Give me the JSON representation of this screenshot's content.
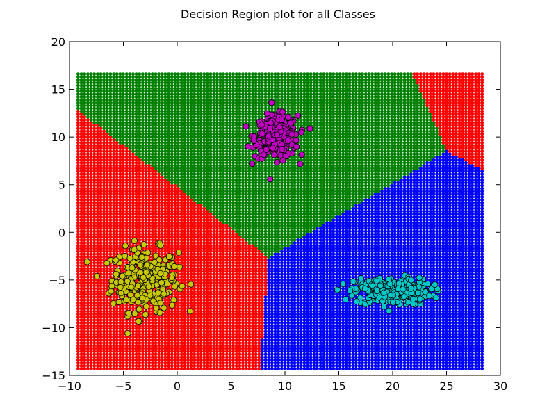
{
  "chart_data": {
    "type": "scatter",
    "title": "Decision Region plot for all Classes",
    "xlabel": "",
    "ylabel": "",
    "xlim": [
      -10,
      30
    ],
    "ylim": [
      -15,
      20
    ],
    "x_ticks": [
      "−10",
      "−5",
      "0",
      "5",
      "10",
      "15",
      "20",
      "25",
      "30"
    ],
    "y_ticks": [
      "20",
      "15",
      "10",
      "5",
      "0",
      "−5",
      "−10",
      "−15"
    ],
    "x_tick_values": [
      -10,
      -5,
      0,
      5,
      10,
      15,
      20,
      25,
      30
    ],
    "y_tick_values": [
      20,
      15,
      10,
      5,
      0,
      -5,
      -10,
      -15
    ],
    "grid": false,
    "legend": "none",
    "decision_regions": {
      "x_range": [
        -9.2,
        28.3
      ],
      "y_range": [
        -14.3,
        16.7
      ],
      "step": 0.3,
      "classes": [
        {
          "color": "#ff0000",
          "center": [
            -3.5,
            -5.0
          ]
        },
        {
          "color": "#008000",
          "center": [
            9.2,
            9.5
          ]
        },
        {
          "color": "#0000ff",
          "center": [
            20.0,
            -6.5
          ]
        },
        {
          "color": "#ff0000",
          "center": [
            36.0,
            20.0
          ]
        }
      ]
    },
    "series": [
      {
        "color": "#c8c800",
        "center": [
          -3.0,
          -5.0
        ],
        "spread": [
          2.8,
          3.0
        ],
        "count": 300
      },
      {
        "color": "#c000c0",
        "center": [
          9.2,
          10.0
        ],
        "spread": [
          1.8,
          2.0
        ],
        "count": 300
      },
      {
        "color": "#00c8c8",
        "center": [
          20.0,
          -6.2
        ],
        "spread": [
          3.2,
          1.3
        ],
        "count": 300
      }
    ]
  }
}
